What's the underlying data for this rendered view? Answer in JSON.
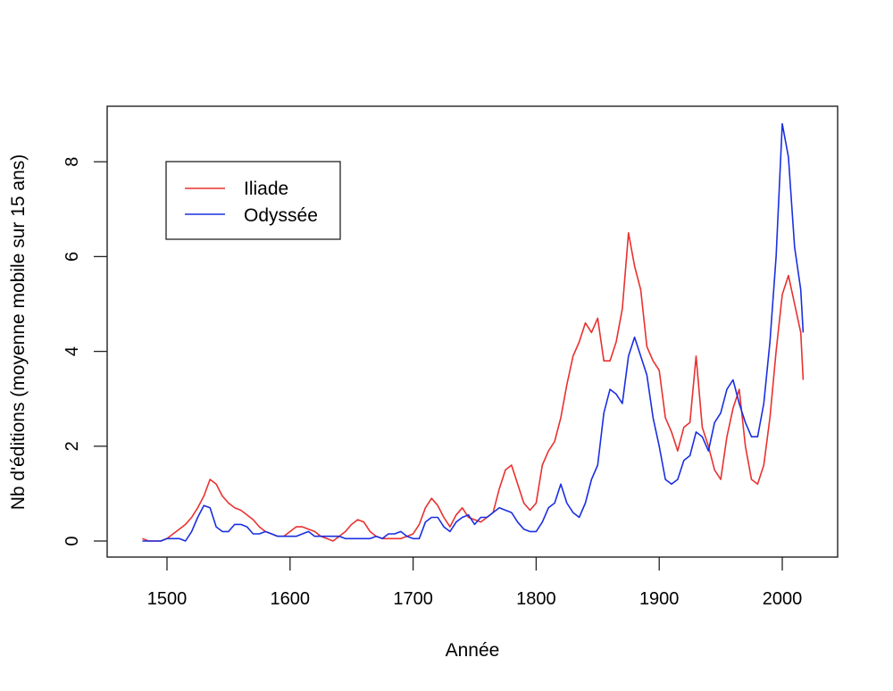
{
  "chart_data": {
    "type": "line",
    "title": "",
    "xlabel": "Année",
    "ylabel": "Nb d'éditions (moyenne mobile sur 15 ans)",
    "xlim": [
      1450,
      2045
    ],
    "ylim": [
      -0.35,
      9.2
    ],
    "xticks": [
      1500,
      1600,
      1700,
      1800,
      1900,
      2000
    ],
    "yticks": [
      0,
      2,
      4,
      6,
      8
    ],
    "grid": false,
    "legend_position": "top-left (inside plot)",
    "x": [
      1480,
      1485,
      1490,
      1495,
      1500,
      1505,
      1510,
      1515,
      1520,
      1525,
      1530,
      1535,
      1540,
      1545,
      1550,
      1555,
      1560,
      1565,
      1570,
      1575,
      1580,
      1585,
      1590,
      1595,
      1600,
      1605,
      1610,
      1615,
      1620,
      1625,
      1630,
      1635,
      1640,
      1645,
      1650,
      1655,
      1660,
      1665,
      1670,
      1675,
      1680,
      1685,
      1690,
      1695,
      1700,
      1705,
      1710,
      1715,
      1720,
      1725,
      1730,
      1735,
      1740,
      1745,
      1750,
      1755,
      1760,
      1765,
      1770,
      1775,
      1780,
      1785,
      1790,
      1795,
      1800,
      1805,
      1810,
      1815,
      1820,
      1825,
      1830,
      1835,
      1840,
      1845,
      1850,
      1855,
      1860,
      1865,
      1870,
      1875,
      1880,
      1885,
      1890,
      1895,
      1900,
      1905,
      1910,
      1915,
      1920,
      1925,
      1930,
      1935,
      1940,
      1945,
      1950,
      1955,
      1960,
      1965,
      1970,
      1975,
      1980,
      1985,
      1990,
      1995,
      2000,
      2005,
      2010,
      2015,
      2017
    ],
    "series": [
      {
        "name": "Iliade",
        "color": "#e8312f",
        "values": [
          0.05,
          0.0,
          0.0,
          0.0,
          0.05,
          0.15,
          0.25,
          0.35,
          0.5,
          0.7,
          0.95,
          1.3,
          1.2,
          0.95,
          0.8,
          0.7,
          0.65,
          0.55,
          0.45,
          0.3,
          0.2,
          0.15,
          0.1,
          0.1,
          0.2,
          0.3,
          0.3,
          0.25,
          0.2,
          0.1,
          0.05,
          0.0,
          0.1,
          0.2,
          0.35,
          0.45,
          0.4,
          0.2,
          0.1,
          0.05,
          0.05,
          0.05,
          0.05,
          0.1,
          0.15,
          0.35,
          0.7,
          0.9,
          0.75,
          0.5,
          0.3,
          0.55,
          0.7,
          0.5,
          0.45,
          0.4,
          0.5,
          0.6,
          1.1,
          1.5,
          1.6,
          1.2,
          0.8,
          0.65,
          0.8,
          1.6,
          1.9,
          2.1,
          2.6,
          3.3,
          3.9,
          4.2,
          4.6,
          4.4,
          4.7,
          3.8,
          3.8,
          4.2,
          4.9,
          6.5,
          5.8,
          5.3,
          4.1,
          3.8,
          3.6,
          2.6,
          2.3,
          1.9,
          2.4,
          2.5,
          3.9,
          2.4,
          2.0,
          1.5,
          1.3,
          2.2,
          2.8,
          3.2,
          2.0,
          1.3,
          1.2,
          1.6,
          2.6,
          4.0,
          5.2,
          5.6,
          5.0,
          4.4,
          3.4
        ]
      },
      {
        "name": "Odyssée",
        "color": "#1a2fe0",
        "values": [
          0.0,
          0.0,
          0.0,
          0.0,
          0.05,
          0.05,
          0.05,
          0.0,
          0.2,
          0.5,
          0.75,
          0.7,
          0.3,
          0.2,
          0.2,
          0.35,
          0.35,
          0.3,
          0.15,
          0.15,
          0.2,
          0.15,
          0.1,
          0.1,
          0.1,
          0.1,
          0.15,
          0.2,
          0.1,
          0.1,
          0.1,
          0.1,
          0.1,
          0.05,
          0.05,
          0.05,
          0.05,
          0.05,
          0.1,
          0.05,
          0.15,
          0.15,
          0.2,
          0.1,
          0.05,
          0.05,
          0.4,
          0.5,
          0.5,
          0.3,
          0.2,
          0.4,
          0.5,
          0.55,
          0.35,
          0.5,
          0.5,
          0.6,
          0.7,
          0.65,
          0.6,
          0.4,
          0.25,
          0.2,
          0.2,
          0.4,
          0.7,
          0.8,
          1.2,
          0.8,
          0.6,
          0.5,
          0.8,
          1.3,
          1.6,
          2.7,
          3.2,
          3.1,
          2.9,
          3.9,
          4.3,
          3.9,
          3.5,
          2.6,
          2.0,
          1.3,
          1.2,
          1.3,
          1.7,
          1.8,
          2.3,
          2.2,
          1.9,
          2.5,
          2.7,
          3.2,
          3.4,
          2.9,
          2.5,
          2.2,
          2.2,
          2.9,
          4.2,
          6.0,
          8.8,
          8.1,
          6.2,
          5.3,
          4.4
        ]
      }
    ]
  },
  "legend": {
    "items": [
      {
        "label": "Iliade",
        "color": "#e8312f"
      },
      {
        "label": "Odyssée",
        "color": "#1a2fe0"
      }
    ]
  },
  "axes": {
    "x_title": "Année",
    "y_title": "Nb d'éditions (moyenne mobile sur 15 ans)",
    "x_tick_labels": [
      "1500",
      "1600",
      "1700",
      "1800",
      "1900",
      "2000"
    ],
    "y_tick_labels": [
      "0",
      "2",
      "4",
      "6",
      "8"
    ]
  }
}
